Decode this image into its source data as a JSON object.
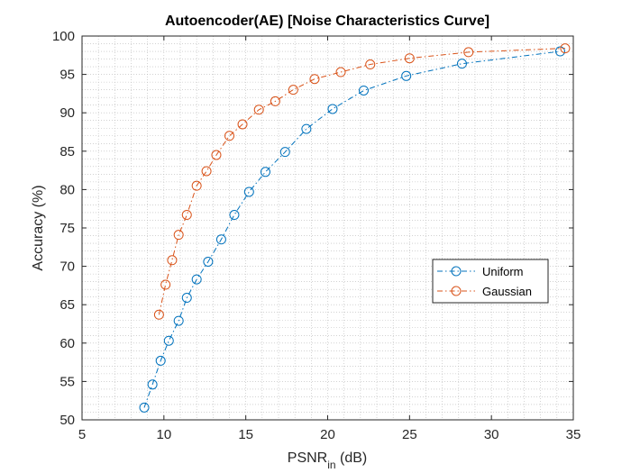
{
  "chart_data": {
    "type": "line",
    "title": "Autoencoder(AE) [Noise Characteristics Curve]",
    "xlabel": {
      "main": "PSNR",
      "sub": "in",
      "unit": " (dB)"
    },
    "ylabel": "Accuracy (%)",
    "xlim": [
      5,
      35
    ],
    "ylim": [
      50,
      100
    ],
    "xticks": [
      5,
      10,
      15,
      20,
      25,
      30,
      35
    ],
    "yticks": [
      50,
      55,
      60,
      65,
      70,
      75,
      80,
      85,
      90,
      95,
      100
    ],
    "grid": "minor-dotted",
    "legend": "right",
    "series": [
      {
        "name": "Uniform",
        "color": "#0072BD",
        "marker": "circle",
        "line": "dash-dot",
        "x": [
          8.8,
          9.3,
          9.8,
          10.3,
          10.9,
          11.4,
          12.0,
          12.7,
          13.5,
          14.3,
          15.2,
          16.2,
          17.4,
          18.7,
          20.3,
          22.2,
          24.8,
          28.2,
          34.2
        ],
        "y": [
          51.6,
          54.6,
          57.7,
          60.3,
          62.9,
          65.9,
          68.3,
          70.6,
          73.5,
          76.7,
          79.7,
          82.3,
          84.9,
          87.9,
          90.5,
          92.9,
          94.8,
          96.4,
          98.0
        ]
      },
      {
        "name": "Gaussian",
        "color": "#D95319",
        "marker": "circle",
        "line": "dash-dot",
        "x": [
          9.7,
          10.1,
          10.5,
          10.9,
          11.4,
          12.0,
          12.6,
          13.2,
          14.0,
          14.8,
          15.8,
          16.8,
          17.9,
          19.2,
          20.8,
          22.6,
          25.0,
          28.6,
          34.5
        ],
        "y": [
          63.7,
          67.6,
          70.8,
          74.1,
          76.7,
          80.5,
          82.4,
          84.5,
          87.0,
          88.5,
          90.4,
          91.5,
          93.0,
          94.4,
          95.3,
          96.3,
          97.1,
          97.9,
          98.4
        ]
      }
    ]
  }
}
